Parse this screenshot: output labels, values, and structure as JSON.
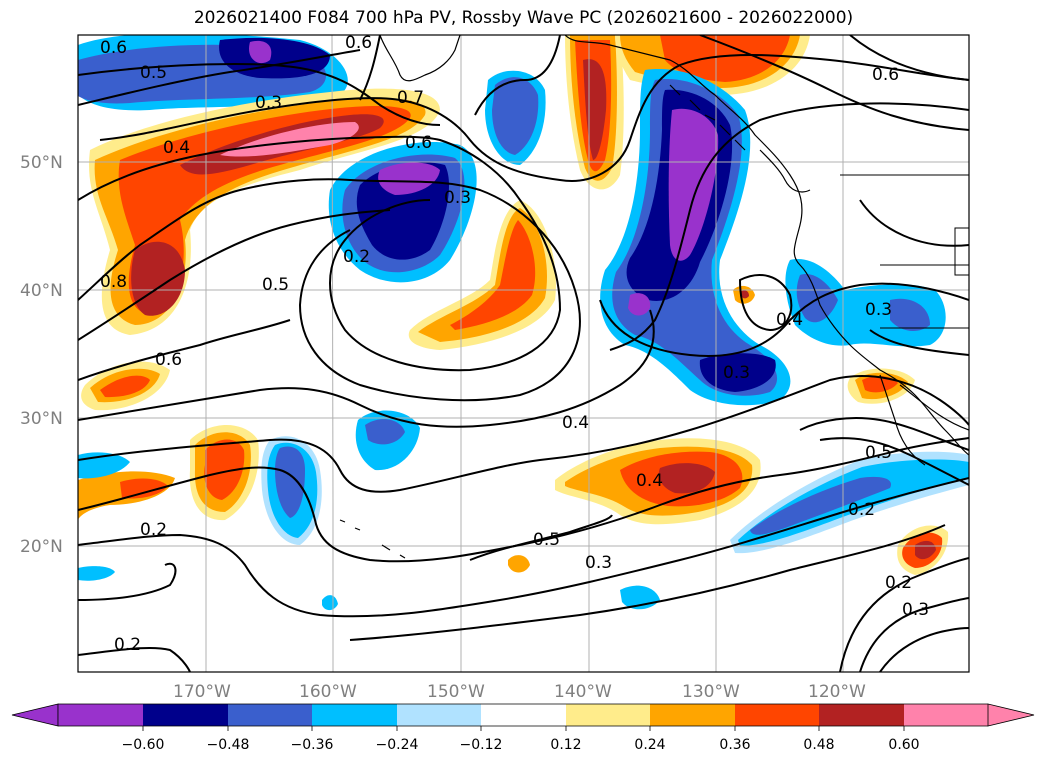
{
  "title": "2026021400 F084 700 hPa PV, Rossby Wave PC (2026021600 - 2026022000)",
  "map": {
    "lat_ticks": [
      "50°N",
      "40°N",
      "30°N",
      "20°N"
    ],
    "lon_ticks": [
      "170°W",
      "160°W",
      "150°W",
      "140°W",
      "130°W",
      "120°W"
    ],
    "contour_labels": [
      "0.6",
      "0.5",
      "0.3",
      "0.6",
      "0.7",
      "0.4",
      "0.6",
      "0.3",
      "0.2",
      "0.5",
      "0.8",
      "0.6",
      "0.3",
      "0.4",
      "0.4",
      "0.5",
      "0.3",
      "0.5",
      "0.2",
      "0.2",
      "0.3",
      "0.3",
      "0.6",
      "0.2",
      "0.2",
      "0.4"
    ],
    "grid": true
  },
  "colorbar": {
    "ticks": [
      "−0.60",
      "−0.48",
      "−0.36",
      "−0.24",
      "−0.12",
      "0.12",
      "0.24",
      "0.36",
      "0.48",
      "0.60"
    ],
    "colors": [
      "#9932cc",
      "#00008b",
      "#3a5fcd",
      "#00bfff",
      "#b0e2ff",
      "#ffffff",
      "#ffec8b",
      "#ffa500",
      "#ff4500",
      "#b22222",
      "#ff82ab"
    ]
  },
  "palette": {
    "purple": "#9932cc",
    "navy": "#00008b",
    "blue": "#3a5fcd",
    "cyan": "#00bfff",
    "lightblue": "#b0e2ff",
    "yellow": "#ffec8b",
    "orange": "#ffa500",
    "redorange": "#ff4500",
    "darkred": "#b22222",
    "pink": "#ff82ab"
  }
}
